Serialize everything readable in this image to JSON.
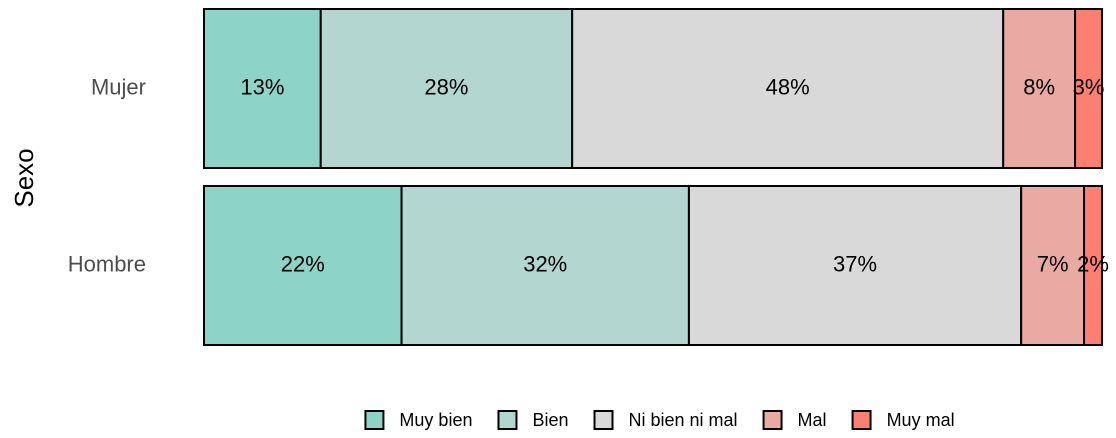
{
  "chart_data": {
    "type": "stacked_bar_horizontal",
    "y_label": "Sexo",
    "categories": [
      "Mujer",
      "Hombre"
    ],
    "series": [
      {
        "name": "Muy bien",
        "color": "#8dd3c7",
        "values": [
          13,
          22
        ],
        "value_labels": [
          "13%",
          "22%"
        ]
      },
      {
        "name": "Bien",
        "color": "#b4d6d0",
        "values": [
          28,
          32
        ],
        "value_labels": [
          "28%",
          "32%"
        ]
      },
      {
        "name": "Ni bien ni mal",
        "color": "#d9d9d9",
        "values": [
          48,
          37
        ],
        "value_labels": [
          "48%",
          "37%"
        ]
      },
      {
        "name": "Mal",
        "color": "#eaaaa4",
        "values": [
          8,
          7
        ],
        "value_labels": [
          "8%",
          "7%"
        ]
      },
      {
        "name": "Muy mal",
        "color": "#fb8072",
        "values": [
          3,
          2
        ],
        "value_labels": [
          "3%",
          "2%"
        ]
      }
    ],
    "legend": "bottom"
  }
}
